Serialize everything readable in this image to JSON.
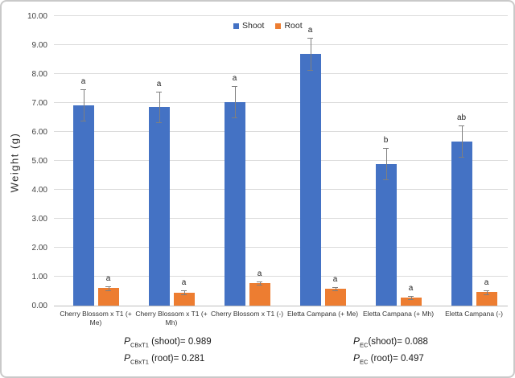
{
  "chart_data": {
    "type": "bar",
    "title": "",
    "ylabel": "Weight (g)",
    "xlabel": "",
    "ylim": [
      0,
      10
    ],
    "ytick_step": 1,
    "yticks": [
      "0.00",
      "1.00",
      "2.00",
      "3.00",
      "4.00",
      "5.00",
      "6.00",
      "7.00",
      "8.00",
      "9.00",
      "10.00"
    ],
    "grid": true,
    "legend_position": "top-center",
    "error_bar_color": "#7F7F7F",
    "categories": [
      "Cherry Blossom x T1 (+ Me)",
      "Cherry Blossom x T1 (+ Mh)",
      "Cherry Blossom x T1 (-)",
      "Eletta Campana (+ Me)",
      "Eletta Campana (+ Mh)",
      "Eletta Campana (-)"
    ],
    "series": [
      {
        "name": "Shoot",
        "color": "#4472C4",
        "values": [
          6.93,
          6.85,
          7.04,
          8.7,
          4.9,
          5.68
        ],
        "errors": [
          0.54,
          0.53,
          0.53,
          0.55,
          0.54,
          0.54
        ],
        "sig_letters": [
          "a",
          "a",
          "a",
          "a",
          "b",
          "ab"
        ]
      },
      {
        "name": "Root",
        "color": "#ED7D31",
        "values": [
          0.6,
          0.45,
          0.77,
          0.59,
          0.28,
          0.46
        ],
        "errors": [
          0.07,
          0.07,
          0.06,
          0.06,
          0.06,
          0.08
        ],
        "sig_letters": [
          "a",
          "a",
          "a",
          "a",
          "a",
          "a"
        ]
      }
    ]
  },
  "annotations": {
    "left": {
      "line1": {
        "p": "P",
        "sub": "CBxT1",
        "rest": " (shoot)= 0.989"
      },
      "line2": {
        "p": "P",
        "sub": "CBxT1",
        "rest": " (root)= 0.281"
      }
    },
    "right": {
      "line1": {
        "p": "P",
        "sub": "EC",
        "rest": "(shoot)= 0.088"
      },
      "line2": {
        "p": "P",
        "sub": "EC",
        "rest": " (root)= 0.497"
      }
    }
  }
}
